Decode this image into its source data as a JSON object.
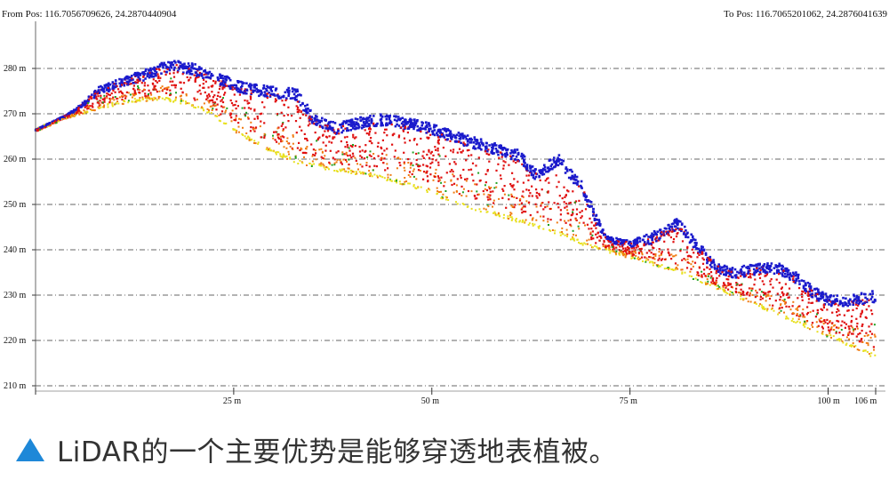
{
  "header": {
    "from_pos": "From Pos: 116.7056709626, 24.2870440904",
    "to_pos": "To Pos: 116.7065201062, 24.2876041639"
  },
  "caption": {
    "icon": "blue-triangle-icon",
    "text": "LiDAR的一个主要优势是能够穿透地表植被。"
  },
  "colors": {
    "canopy": "#1a1acc",
    "vegetation": "#e01010",
    "mid": "#f07a10",
    "ground": "#e8e020",
    "shrub": "#20a020",
    "caption_icon": "#1e88d8"
  },
  "chart_data": {
    "type": "scatter",
    "title": "",
    "xlabel": "",
    "ylabel": "",
    "xlim": [
      0,
      106
    ],
    "ylim": [
      210,
      285
    ],
    "grid": true,
    "x_ticks": [
      {
        "value": 25,
        "label": "25 m"
      },
      {
        "value": 50,
        "label": "50 m"
      },
      {
        "value": 75,
        "label": "75 m"
      },
      {
        "value": 100,
        "label": "100 m"
      },
      {
        "value": 106,
        "label": "106 m"
      }
    ],
    "y_ticks": [
      {
        "value": 280,
        "label": "280 m"
      },
      {
        "value": 270,
        "label": "270 m"
      },
      {
        "value": 260,
        "label": "260 m"
      },
      {
        "value": 250,
        "label": "250 m"
      },
      {
        "value": 240,
        "label": "240 m"
      },
      {
        "value": 230,
        "label": "230 m"
      },
      {
        "value": 220,
        "label": "220 m"
      },
      {
        "value": 210,
        "label": "210 m"
      }
    ],
    "profiles": {
      "canopy_top": [
        [
          0,
          266.5
        ],
        [
          3,
          269
        ],
        [
          5,
          271
        ],
        [
          8,
          276
        ],
        [
          11,
          278
        ],
        [
          14,
          280
        ],
        [
          17,
          282
        ],
        [
          20,
          281
        ],
        [
          23,
          279
        ],
        [
          26,
          277
        ],
        [
          30,
          276
        ],
        [
          33,
          275.5
        ],
        [
          35,
          270
        ],
        [
          38,
          268
        ],
        [
          40,
          269
        ],
        [
          44,
          270
        ],
        [
          47,
          269
        ],
        [
          50,
          268
        ],
        [
          53,
          266
        ],
        [
          57,
          264
        ],
        [
          61,
          262
        ],
        [
          63,
          258
        ],
        [
          66,
          261
        ],
        [
          69,
          255
        ],
        [
          72,
          243
        ],
        [
          75,
          242
        ],
        [
          78,
          244
        ],
        [
          81,
          247
        ],
        [
          84,
          241
        ],
        [
          86,
          237
        ],
        [
          88,
          236
        ],
        [
          91,
          237
        ],
        [
          94,
          237
        ],
        [
          96,
          235
        ],
        [
          98,
          232
        ],
        [
          100,
          230
        ],
        [
          103,
          230
        ],
        [
          106,
          231
        ]
      ],
      "ground": [
        [
          0,
          266
        ],
        [
          4,
          269
        ],
        [
          8,
          271
        ],
        [
          12,
          272.5
        ],
        [
          16,
          273
        ],
        [
          19,
          272
        ],
        [
          22,
          270
        ],
        [
          25,
          266
        ],
        [
          29,
          262
        ],
        [
          33,
          259
        ],
        [
          37,
          257.5
        ],
        [
          41,
          256.5
        ],
        [
          45,
          255
        ],
        [
          49,
          253
        ],
        [
          53,
          250
        ],
        [
          57,
          248
        ],
        [
          61,
          246
        ],
        [
          65,
          244
        ],
        [
          69,
          241
        ],
        [
          73,
          239
        ],
        [
          77,
          237
        ],
        [
          81,
          235
        ],
        [
          85,
          232
        ],
        [
          89,
          229
        ],
        [
          93,
          226
        ],
        [
          97,
          223
        ],
        [
          101,
          220
        ],
        [
          106,
          216
        ]
      ]
    },
    "point_density": 4200
  }
}
